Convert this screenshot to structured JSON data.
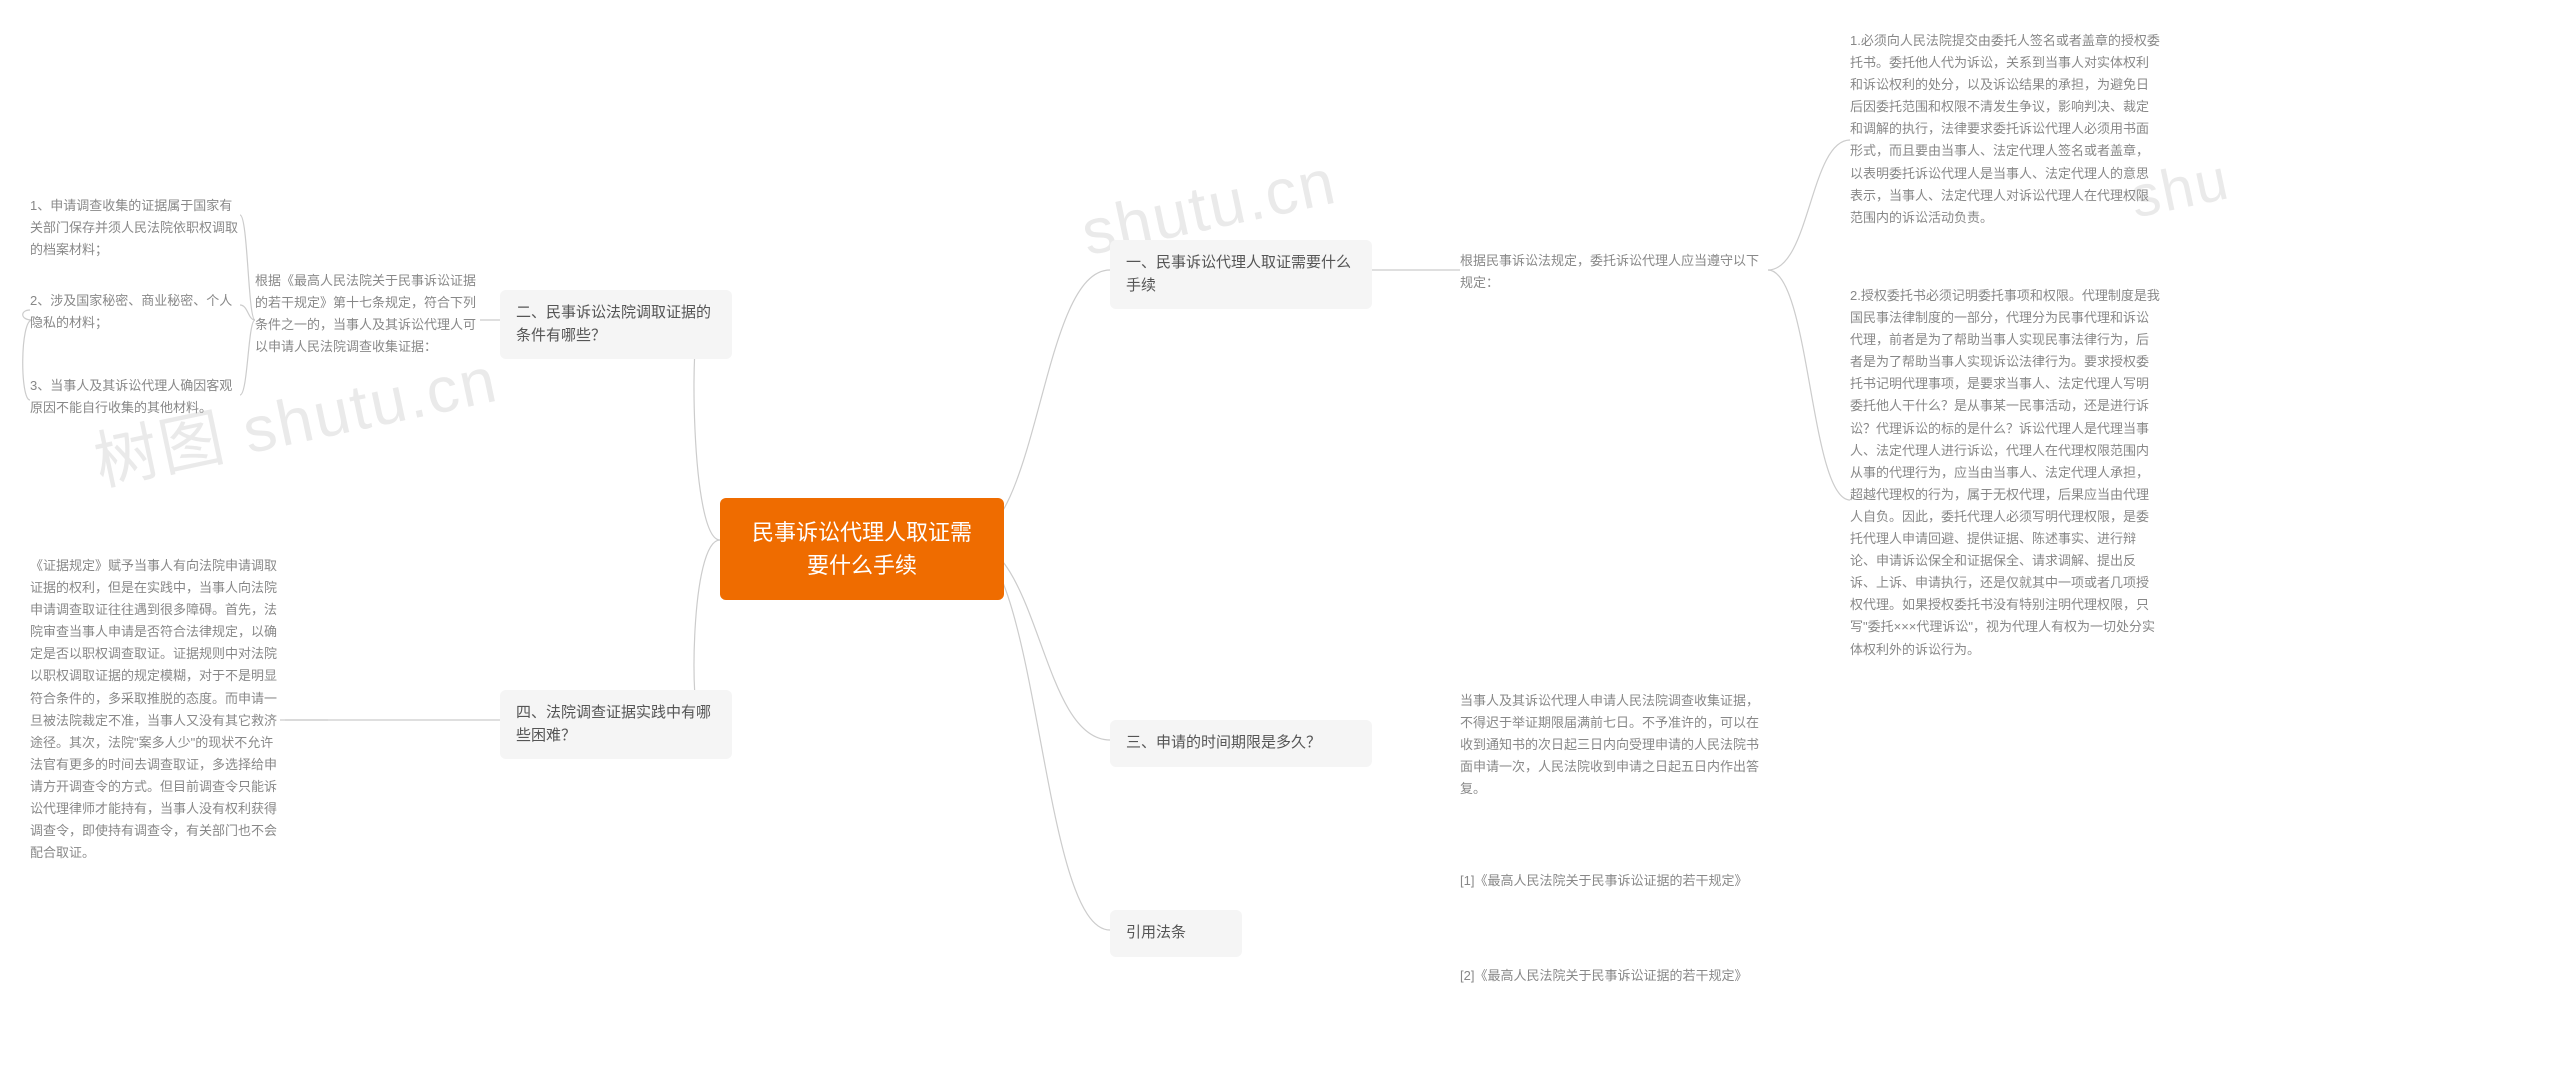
{
  "watermarks": {
    "w1": "树图 shutu.cn",
    "w2": "shutu.cn",
    "w3": "shu"
  },
  "root": {
    "title": "民事诉讼代理人取证需要什么手续"
  },
  "colors": {
    "root_bg": "#ef6c00",
    "root_text": "#ffffff",
    "branch_bg": "#f5f5f5",
    "branch_text": "#555555",
    "leaf_text": "#888888",
    "connector": "#cccccc",
    "watermark": "#d9d9d9",
    "page_bg": "#ffffff"
  },
  "branches": {
    "b1": {
      "label": "一、民事诉讼代理人取证需要什么手续",
      "intro": "根据民事诉讼法规定，委托诉讼代理人应当遵守以下规定：",
      "leaves": {
        "l1": "1.必须向人民法院提交由委托人签名或者盖章的授权委托书。委托他人代为诉讼，关系到当事人对实体权利和诉讼权利的处分，以及诉讼结果的承担，为避免日后因委托范围和权限不清发生争议，影响判决、裁定和调解的执行，法律要求委托诉讼代理人必须用书面形式，而且要由当事人、法定代理人签名或者盖章，以表明委托诉讼代理人是当事人、法定代理人的意思表示，当事人、法定代理人对诉讼代理人在代理权限范围内的诉讼活动负责。",
        "l2": "2.授权委托书必须记明委托事项和权限。代理制度是我国民事法律制度的一部分，代理分为民事代理和诉讼代理，前者是为了帮助当事人实现民事法律行为，后者是为了帮助当事人实现诉讼法律行为。要求授权委托书记明代理事项，是要求当事人、法定代理人写明委托他人干什么？是从事某一民事活动，还是进行诉讼？代理诉讼的标的是什么？诉讼代理人是代理当事人、法定代理人进行诉讼，代理人在代理权限范围内从事的代理行为，应当由当事人、法定代理人承担，超越代理权的行为，属于无权代理，后果应当由代理人自负。因此，委托代理人必须写明代理权限，是委托代理人申请回避、提供证据、陈述事实、进行辩论、申请诉讼保全和证据保全、请求调解、提出反诉、上诉、申请执行，还是仅就其中一项或者几项授权代理。如果授权委托书没有特别注明代理权限，只写\"委托×××代理诉讼\"，视为代理人有权为一切处分实体权利外的诉讼行为。"
      }
    },
    "b2": {
      "label": "二、民事诉讼法院调取证据的条件有哪些？",
      "intro": "根据《最高人民法院关于民事诉讼证据的若干规定》第十七条规定，符合下列条件之一的，当事人及其诉讼代理人可以申请人民法院调查收集证据：",
      "leaves": {
        "l1": "1、申请调查收集的证据属于国家有关部门保存并须人民法院依职权调取的档案材料；",
        "l2": "2、涉及国家秘密、商业秘密、个人隐私的材料；",
        "l3": "3、当事人及其诉讼代理人确因客观原因不能自行收集的其他材料。"
      }
    },
    "b3": {
      "label": "三、申请的时间期限是多久？",
      "leaf": "当事人及其诉讼代理人申请人民法院调查收集证据，不得迟于举证期限届满前七日。不予准许的，可以在收到通知书的次日起三日内向受理申请的人民法院书面申请一次，人民法院收到申请之日起五日内作出答复。"
    },
    "b4": {
      "label": "四、法院调查证据实践中有哪些困难？",
      "leaf": "《证据规定》赋予当事人有向法院申请调取证据的权利，但是在实践中，当事人向法院申请调查取证往往遇到很多障碍。首先，法院审查当事人申请是否符合法律规定，以确定是否以职权调查取证。证据规则中对法院以职权调取证据的规定模糊，对于不是明显符合条件的，多采取推脱的态度。而申请一旦被法院裁定不准，当事人又没有其它救济途径。其次，法院\"案多人少\"的现状不允许法官有更多的时间去调查取证，多选择给申请方开调查令的方式。但目前调查令只能诉讼代理律师才能持有，当事人没有权利获得调查令，即使持有调查令，有关部门也不会配合取证。"
    },
    "b5": {
      "label": "引用法条",
      "leaves": {
        "l1": "[1]《最高人民法院关于民事诉讼证据的若干规定》",
        "l2": "[2]《最高人民法院关于民事诉讼证据的若干规定》"
      }
    }
  }
}
